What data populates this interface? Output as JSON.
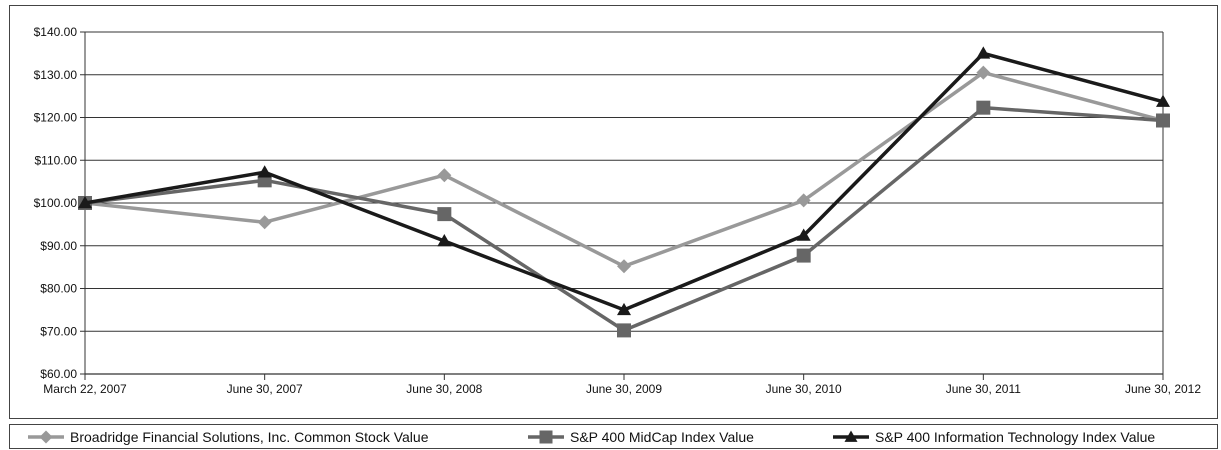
{
  "chart_data": {
    "type": "line",
    "categories": [
      "March 22, 2007",
      "June 30, 2007",
      "June 30, 2008",
      "June 30, 2009",
      "June 30, 2010",
      "June 30, 2011",
      "June 30, 2012"
    ],
    "ylim": [
      60,
      140
    ],
    "y_ticks": [
      60,
      70,
      80,
      90,
      100,
      110,
      120,
      130,
      140
    ],
    "y_tick_labels": [
      "$60.00",
      "$70.00",
      "$80.00",
      "$90.00",
      "$100.00",
      "$110.00",
      "$120.00",
      "$130.00",
      "$140.00"
    ],
    "grid": true,
    "legend_position": "bottom",
    "series": [
      {
        "name": "Broadridge Financial Solutions, Inc. Common Stock Value",
        "values": [
          100.0,
          95.5,
          106.5,
          85.2,
          100.6,
          130.5,
          119.3
        ],
        "color": "#999999",
        "marker": "diamond"
      },
      {
        "name": "S&P 400 MidCap Index Value",
        "values": [
          100.0,
          105.3,
          97.4,
          70.2,
          87.7,
          122.3,
          119.3
        ],
        "color": "#666666",
        "marker": "square"
      },
      {
        "name": "S&P 400 Information Technology Index Value",
        "values": [
          100.0,
          107.2,
          91.1,
          75.0,
          92.4,
          135.0,
          123.7
        ],
        "color": "#1a1a1a",
        "marker": "triangle"
      }
    ]
  }
}
